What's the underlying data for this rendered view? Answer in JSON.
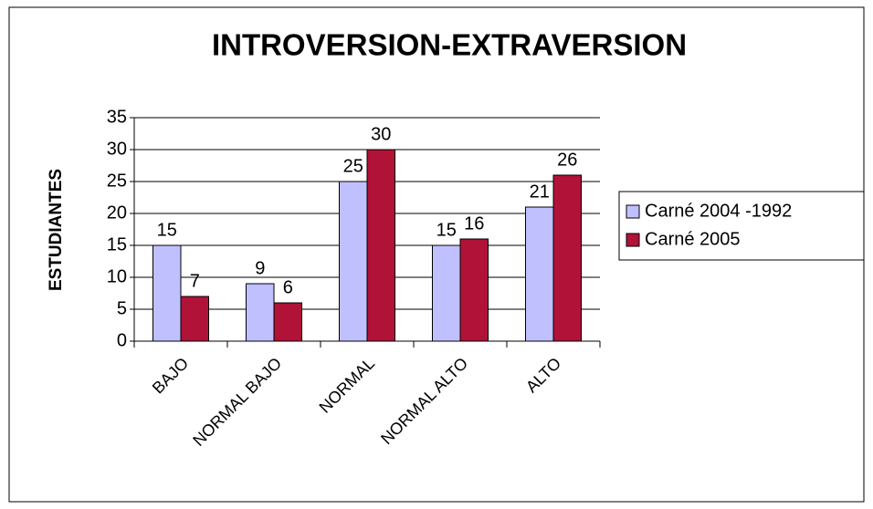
{
  "chart_data": {
    "type": "bar",
    "title": "INTROVERSION-EXTRAVERSION",
    "y_label": "ESTUDIANTES",
    "categories": [
      "BAJO",
      "NORMAL BAJO",
      "NORMAL",
      "NORMAL ALTO",
      "ALTO"
    ],
    "series": [
      {
        "name": "Carné 2004 -1992",
        "color": "#c0c0ff",
        "values": [
          15,
          9,
          25,
          15,
          21
        ]
      },
      {
        "name": "Carné 2005",
        "color": "#b01238",
        "values": [
          7,
          6,
          30,
          16,
          26
        ]
      }
    ],
    "ylim": [
      0,
      35
    ],
    "yticks": [
      0,
      5,
      10,
      15,
      20,
      25,
      30,
      35
    ],
    "grid": true,
    "legend": "right",
    "data_labels": true
  }
}
